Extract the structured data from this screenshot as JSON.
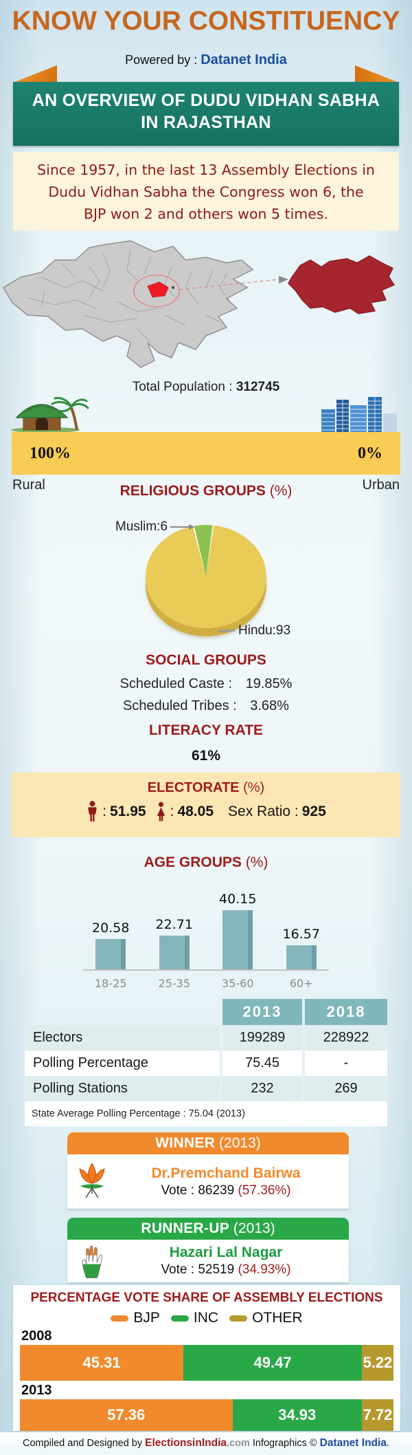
{
  "header": {
    "title": "KNOW YOUR CONSTITUENCY",
    "powered_by_label": "Powered by :",
    "powered_by_brand": "Datanet India"
  },
  "banner": {
    "line1": "AN OVERVIEW OF DUDU VIDHAN SABHA",
    "line2": "IN RAJASTHAN"
  },
  "intro": {
    "line1": "Since 1957, in the last 13 Assembly Elections in",
    "line2": "Dudu Vidhan Sabha the Congress won 6, the",
    "line3": "BJP won 2 and others won 5 times."
  },
  "population": {
    "label": "Total Population :",
    "value": "312745",
    "rural_pct": "100%",
    "urban_pct": "0%",
    "rural_label": "Rural",
    "urban_label": "Urban"
  },
  "religion": {
    "title": "RELIGIOUS GROUPS",
    "suffix": "(%)",
    "muslim_label": "Muslim:6",
    "hindu_label": "Hindu:93"
  },
  "social": {
    "title": "SOCIAL GROUPS",
    "caste_label": "Scheduled Caste :",
    "caste_value": "19.85%",
    "tribe_label": "Scheduled Tribes :",
    "tribe_value": "3.68%"
  },
  "literacy": {
    "title": "LITERACY RATE",
    "value": "61%"
  },
  "electorate": {
    "title": "ELECTORATE",
    "suffix": "(%)",
    "colon": ":",
    "male_value": "51.95",
    "female_value": "48.05",
    "sex_ratio_label": "Sex Ratio :",
    "sex_ratio_value": "925"
  },
  "age_groups": {
    "title": "AGE GROUPS",
    "suffix": "(%)"
  },
  "stats_table": {
    "col_headers": [
      "2013",
      "2018"
    ],
    "rows": [
      {
        "label": "Electors",
        "v2013": "199289",
        "v2018": "228922"
      },
      {
        "label": "Polling Percentage",
        "v2013": "75.45",
        "v2018": "-"
      },
      {
        "label": "Polling Stations",
        "v2013": "232",
        "v2018": "269"
      }
    ],
    "note": "State Average Polling Percentage : 75.04 (2013)"
  },
  "winner": {
    "heading": "WINNER",
    "year": "(2013)",
    "party": "BJP",
    "name": "Dr.Premchand Bairwa",
    "vote_label": "Vote :",
    "vote_value": "86239",
    "vote_pct": "(57.36%)"
  },
  "runner_up": {
    "heading": "RUNNER-UP",
    "year": "(2013)",
    "party": "INC",
    "name": "Hazari Lal Nagar",
    "vote_label": "Vote :",
    "vote_value": "52519",
    "vote_pct": "(34.93%)"
  },
  "footer": {
    "prefix": "Compiled and Designed by",
    "brand1": "ElectionsinIndia",
    "brand1_suffix": ".com",
    "middle": "Infographics ©",
    "brand2": "Datanet India",
    "end": "."
  },
  "colors": {
    "title_orange": "#c8661e",
    "brand_blue": "#1b4da1",
    "banner_green": "#18796a",
    "dark_red": "#9e1b1b",
    "cream": "#fcf5dc",
    "yellow_bar": "#f9cc55",
    "electorate_cream": "#fbe6b4",
    "table_teal": "#7fb7bb",
    "table_row_teal": "#dfedee",
    "bjp_orange": "#f08a2d",
    "inc_green": "#2aa848",
    "other_olive": "#b5992f",
    "map_highlight_red": "#ed1c24",
    "constituency_maroon": "#a5262e"
  },
  "chart_data": [
    {
      "type": "pie",
      "title": "RELIGIOUS GROUPS (%)",
      "labels": [
        "Hindu",
        "Muslim"
      ],
      "values": [
        93,
        6
      ],
      "colors": [
        "#e9cb58",
        "#8cc152"
      ],
      "style": "3d-pie, Muslim slice at top, exploded labels with leader arrows"
    },
    {
      "type": "bar",
      "title": "AGE GROUPS (%)",
      "categories": [
        "18-25",
        "25-35",
        "35-60",
        "60+"
      ],
      "values": [
        20.58,
        22.71,
        40.15,
        16.57
      ],
      "bar_color": "#85b6bc",
      "bar_color_dark": "#6f9fa6",
      "ylim": [
        0,
        45
      ],
      "value_labels": "above bars",
      "grid": false
    },
    {
      "type": "bar",
      "variant": "horizontal-stacked",
      "title": "PERCENTAGE VOTE SHARE OF ASSEMBLY ELECTIONS",
      "categories": [
        "2008",
        "2013"
      ],
      "series": [
        {
          "name": "BJP",
          "color": "#f08a2d",
          "values": [
            45.31,
            57.36
          ]
        },
        {
          "name": "INC",
          "color": "#2aa848",
          "values": [
            49.47,
            34.93
          ]
        },
        {
          "name": "OTHER",
          "color": "#b5992f",
          "values": [
            5.22,
            7.72
          ]
        }
      ],
      "legend_position": "top",
      "value_labels": "inside, white bold"
    }
  ]
}
